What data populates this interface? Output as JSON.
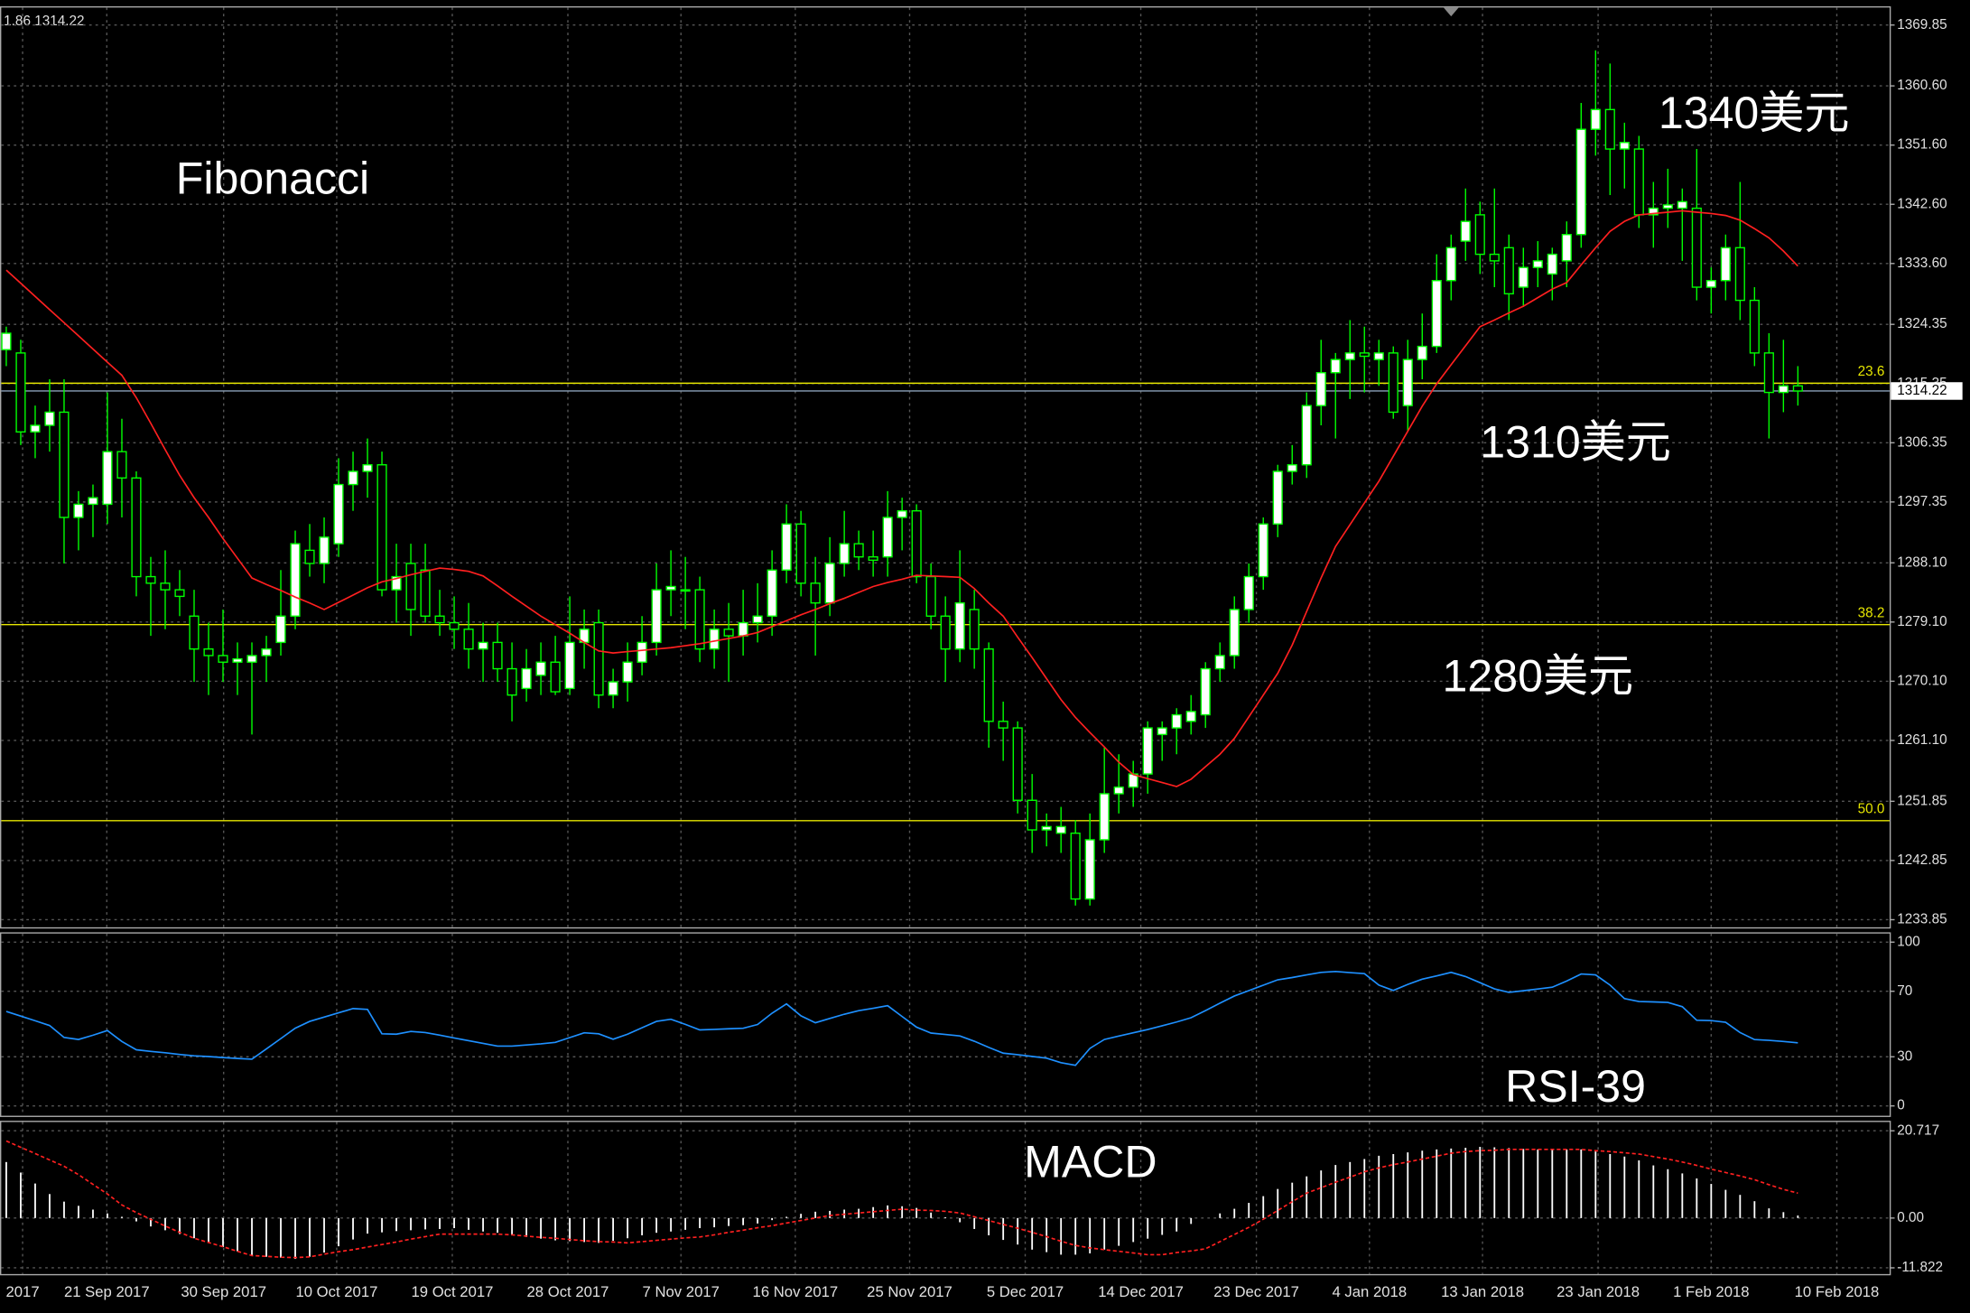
{
  "chart_data": {
    "type": "candlestick",
    "corner_label": "1.86 1314.22",
    "annotations": [
      "Fibonacci",
      "1340美元",
      "1310美元",
      "1280美元",
      "RSI-39",
      "MACD"
    ],
    "x_labels": [
      "2017",
      "21 Sep 2017",
      "30 Sep 2017",
      "10 Oct 2017",
      "19 Oct 2017",
      "28 Oct 2017",
      "7 Nov 2017",
      "16 Nov 2017",
      "25 Nov 2017",
      "5 Dec 2017",
      "14 Dec 2017",
      "23 Dec 2017",
      "4 Jan 2018",
      "13 Jan 2018",
      "23 Jan 2018",
      "1 Feb 2018",
      "10 Feb 2018"
    ],
    "candle_colors": {
      "up": "#ffffff",
      "down": "#000000",
      "wick": "#00ff00"
    },
    "grid": true,
    "ylim": [
      1232.7,
      1372.7
    ],
    "yticks": [
      1369.85,
      {
        "value": 1360.6,
        "label": "1360.60"
      },
      {
        "value": 1351.6,
        "label": "1351.60"
      },
      {
        "value": 1342.6,
        "label": "1342.60"
      },
      {
        "value": 1333.6,
        "label": "1333.60"
      },
      1324.35,
      1315.35,
      1306.35,
      1297.35,
      {
        "value": 1288.1,
        "label": "1288.10"
      },
      {
        "value": 1279.1,
        "label": "1279.10"
      },
      {
        "value": 1270.1,
        "label": "1270.10"
      },
      {
        "value": 1261.1,
        "label": "1261.10"
      },
      1251.85,
      1242.85,
      1233.85
    ],
    "current_price": 1314.22,
    "fib_levels": [
      {
        "label": "23.6",
        "price": 1315.4,
        "color": "#e6e600"
      },
      {
        "label": "38.2",
        "price": 1278.7,
        "color": "#e6e600"
      },
      {
        "label": "50.0",
        "price": 1248.9,
        "color": "#e6e600"
      }
    ],
    "candles": [
      [
        1320.5,
        1324,
        1318,
        1323
      ],
      [
        1320,
        1322,
        1306,
        1308
      ],
      [
        1308,
        1312,
        1304,
        1309
      ],
      [
        1309,
        1316,
        1305,
        1311
      ],
      [
        1311,
        1316,
        1288,
        1295
      ],
      [
        1295,
        1299,
        1290,
        1297
      ],
      [
        1297,
        1300,
        1292,
        1298
      ],
      [
        1297,
        1314,
        1294,
        1305
      ],
      [
        1305,
        1310,
        1295,
        1301
      ],
      [
        1301,
        1302,
        1283,
        1286
      ],
      [
        1286,
        1289,
        1277,
        1285
      ],
      [
        1285,
        1290,
        1278,
        1284
      ],
      [
        1284,
        1287,
        1280,
        1283
      ],
      [
        1280,
        1284,
        1270,
        1275
      ],
      [
        1275,
        1279,
        1268,
        1274
      ],
      [
        1274,
        1281,
        1270,
        1273
      ],
      [
        1273,
        1276,
        1268,
        1273.5
      ],
      [
        1273,
        1276,
        1262,
        1274
      ],
      [
        1274,
        1277,
        1270,
        1275
      ],
      [
        1276,
        1287,
        1274,
        1280
      ],
      [
        1280,
        1293,
        1278,
        1291
      ],
      [
        1290,
        1294,
        1286,
        1288
      ],
      [
        1288,
        1295,
        1285,
        1292
      ],
      [
        1291,
        1304,
        1289,
        1300
      ],
      [
        1300,
        1305,
        1296,
        1302
      ],
      [
        1302,
        1307,
        1298,
        1303
      ],
      [
        1303,
        1305,
        1283,
        1284
      ],
      [
        1284,
        1291,
        1279,
        1286
      ],
      [
        1288,
        1291,
        1277,
        1281
      ],
      [
        1287,
        1291,
        1279,
        1280
      ],
      [
        1280,
        1284,
        1277,
        1279
      ],
      [
        1279,
        1283,
        1275,
        1278
      ],
      [
        1278,
        1282,
        1272,
        1275
      ],
      [
        1275,
        1279,
        1270,
        1276
      ],
      [
        1276,
        1279,
        1270,
        1272
      ],
      [
        1272,
        1276,
        1264,
        1268
      ],
      [
        1269,
        1275,
        1267,
        1272
      ],
      [
        1271,
        1276,
        1268,
        1273
      ],
      [
        1273,
        1277,
        1268,
        1268.5
      ],
      [
        1269,
        1283,
        1268,
        1276
      ],
      [
        1276,
        1281,
        1272,
        1278
      ],
      [
        1279,
        1281,
        1266,
        1268
      ],
      [
        1268,
        1272,
        1266,
        1270
      ],
      [
        1270,
        1276,
        1267,
        1273
      ],
      [
        1273,
        1280,
        1271,
        1276
      ],
      [
        1276,
        1288,
        1274,
        1284
      ],
      [
        1284,
        1290,
        1280,
        1284.5
      ],
      [
        1284,
        1289,
        1278,
        1284
      ],
      [
        1284,
        1286,
        1273,
        1275
      ],
      [
        1275,
        1281,
        1272,
        1278
      ],
      [
        1278,
        1282,
        1270,
        1277
      ],
      [
        1277,
        1284,
        1274,
        1279
      ],
      [
        1279,
        1285,
        1276,
        1280
      ],
      [
        1280,
        1290,
        1277,
        1287
      ],
      [
        1287,
        1297,
        1285,
        1294
      ],
      [
        1294,
        1296,
        1283,
        1285
      ],
      [
        1285,
        1289,
        1274,
        1282
      ],
      [
        1282,
        1292,
        1280,
        1288
      ],
      [
        1288,
        1296,
        1286,
        1291
      ],
      [
        1291,
        1293,
        1287,
        1289
      ],
      [
        1289,
        1293,
        1286,
        1288.5
      ],
      [
        1289,
        1299,
        1286,
        1295
      ],
      [
        1295,
        1298,
        1290,
        1296
      ],
      [
        1296,
        1297,
        1285,
        1286
      ],
      [
        1286,
        1288,
        1278,
        1280
      ],
      [
        1280,
        1283,
        1270,
        1275
      ],
      [
        1275,
        1290,
        1273,
        1282
      ],
      [
        1281,
        1284,
        1272,
        1275
      ],
      [
        1275,
        1276,
        1260,
        1264
      ],
      [
        1264,
        1267,
        1258,
        1263
      ],
      [
        1263,
        1264,
        1250,
        1252
      ],
      [
        1252,
        1256,
        1244,
        1247.5
      ],
      [
        1247.5,
        1250,
        1245,
        1248
      ],
      [
        1247,
        1251,
        1244,
        1248
      ],
      [
        1247,
        1249,
        1236,
        1237
      ],
      [
        1237,
        1250,
        1236,
        1246
      ],
      [
        1246,
        1260,
        1244,
        1253
      ],
      [
        1253,
        1259,
        1250,
        1254
      ],
      [
        1254,
        1258,
        1251,
        1256
      ],
      [
        1256,
        1264,
        1253,
        1263
      ],
      [
        1262,
        1264,
        1258,
        1263
      ],
      [
        1263,
        1266,
        1259,
        1265
      ],
      [
        1264,
        1268,
        1262,
        1265.5
      ],
      [
        1265,
        1273,
        1263,
        1272
      ],
      [
        1272,
        1276,
        1270,
        1274
      ],
      [
        1274,
        1283,
        1272,
        1281
      ],
      [
        1281,
        1288,
        1279,
        1286
      ],
      [
        1286,
        1295,
        1284,
        1294
      ],
      [
        1294,
        1303,
        1292,
        1302
      ],
      [
        1302,
        1306,
        1300,
        1303
      ],
      [
        1303,
        1314,
        1301,
        1312
      ],
      [
        1312,
        1322,
        1309,
        1317
      ],
      [
        1317,
        1320,
        1307,
        1319
      ],
      [
        1319,
        1325,
        1313,
        1320
      ],
      [
        1320,
        1324,
        1314,
        1319.5
      ],
      [
        1319,
        1322,
        1315,
        1320
      ],
      [
        1320,
        1321,
        1310,
        1311
      ],
      [
        1312,
        1322,
        1308,
        1319
      ],
      [
        1319,
        1326,
        1316,
        1321
      ],
      [
        1321,
        1335,
        1320,
        1331
      ],
      [
        1331,
        1338,
        1328,
        1336
      ],
      [
        1337,
        1345,
        1334,
        1340
      ],
      [
        1341,
        1343,
        1332,
        1335
      ],
      [
        1335,
        1345,
        1330,
        1334
      ],
      [
        1336,
        1338,
        1325,
        1329
      ],
      [
        1330,
        1336,
        1327,
        1333
      ],
      [
        1333,
        1337,
        1330,
        1334
      ],
      [
        1332,
        1336,
        1328,
        1335
      ],
      [
        1334,
        1340,
        1330,
        1338
      ],
      [
        1338,
        1358,
        1336,
        1354
      ],
      [
        1354,
        1366,
        1350,
        1357
      ],
      [
        1357,
        1364,
        1344,
        1351
      ],
      [
        1351,
        1355,
        1345,
        1352
      ],
      [
        1351,
        1353,
        1339,
        1341
      ],
      [
        1341,
        1346,
        1336,
        1342
      ],
      [
        1342,
        1348,
        1339,
        1342.5
      ],
      [
        1342,
        1345,
        1334,
        1343
      ],
      [
        1342,
        1351,
        1328,
        1330
      ],
      [
        1330,
        1333,
        1326,
        1331
      ],
      [
        1331,
        1338,
        1328,
        1336
      ],
      [
        1336,
        1346,
        1325,
        1328
      ],
      [
        1328,
        1330,
        1318,
        1320
      ],
      [
        1320,
        1323,
        1307,
        1314
      ],
      [
        1314,
        1322,
        1311,
        1315
      ],
      [
        1315,
        1318,
        1312,
        1314.22
      ]
    ],
    "ma": {
      "color": "#ff2020",
      "values": [
        1332.6,
        1330.6,
        1328.6,
        1326.6,
        1324.6,
        1322.6,
        1320.6,
        1318.6,
        1316.6,
        1313.2,
        1309.3,
        1305.3,
        1301.4,
        1298.0,
        1295.0,
        1291.8,
        1288.8,
        1285.8,
        1284.8,
        1283.9,
        1282.9,
        1282.0,
        1281.0,
        1282.1,
        1283.2,
        1284.3,
        1285.2,
        1285.7,
        1286.3,
        1286.8,
        1287.3,
        1287.1,
        1286.8,
        1286.1,
        1284.6,
        1283.0,
        1281.5,
        1280.0,
        1278.7,
        1277.4,
        1276.0,
        1274.7,
        1274.4,
        1274.6,
        1274.8,
        1275.0,
        1275.2,
        1275.5,
        1275.8,
        1276.2,
        1276.6,
        1277.0,
        1277.5,
        1278.4,
        1279.3,
        1280.2,
        1281.0,
        1281.9,
        1282.7,
        1283.6,
        1284.5,
        1285.1,
        1285.6,
        1286.2,
        1286.1,
        1286.0,
        1285.9,
        1284.2,
        1282.0,
        1280.0,
        1276.8,
        1273.7,
        1270.5,
        1267.3,
        1264.6,
        1262.3,
        1260.1,
        1257.8,
        1255.9,
        1255.3,
        1254.7,
        1254.1,
        1255.2,
        1257.1,
        1259.0,
        1261.4,
        1264.7,
        1268.0,
        1271.3,
        1275.6,
        1280.7,
        1285.8,
        1290.6,
        1293.9,
        1297.2,
        1300.5,
        1304.3,
        1308.1,
        1311.9,
        1315.3,
        1318.2,
        1321.1,
        1324.0,
        1325.0,
        1326.1,
        1327.1,
        1328.4,
        1329.7,
        1330.7,
        1333.4,
        1336.0,
        1338.5,
        1340.0,
        1341.0,
        1341.2,
        1341.4,
        1341.6,
        1341.4,
        1341.2,
        1340.9,
        1340.2,
        1338.9,
        1337.5,
        1335.5,
        1333.2
      ]
    },
    "rsi": {
      "color": "#1e90ff",
      "ylim": [
        -6,
        106
      ],
      "yticks": [
        100,
        70,
        30,
        0
      ],
      "values": [
        57.7,
        54.8,
        52.0,
        49.1,
        41.8,
        40.6,
        43.2,
        46.0,
        39.3,
        34.3,
        33.3,
        32.4,
        31.4,
        30.6,
        30.1,
        29.5,
        29.0,
        28.5,
        34.8,
        41.1,
        47.5,
        51.6,
        54.2,
        56.8,
        59.4,
        58.9,
        44.0,
        43.8,
        45.5,
        44.8,
        43.2,
        41.5,
        39.8,
        38.2,
        36.5,
        36.5,
        37.2,
        37.9,
        38.8,
        41.7,
        44.6,
        44.0,
        40.7,
        43.8,
        47.7,
        51.6,
        52.9,
        49.8,
        46.4,
        46.7,
        47.1,
        47.4,
        49.7,
        56.6,
        62.3,
        55.0,
        50.8,
        53.4,
        56.0,
        58.1,
        59.6,
        61.2,
        54.6,
        48.1,
        44.5,
        43.6,
        42.7,
        39.5,
        35.7,
        32.2,
        31.3,
        30.2,
        29.1,
        26.4,
        24.8,
        35.1,
        40.6,
        42.6,
        44.6,
        46.6,
        48.9,
        51.2,
        53.8,
        58.2,
        62.7,
        67.1,
        70.4,
        73.7,
        77.0,
        78.4,
        80.0,
        81.5,
        82.1,
        81.4,
        80.8,
        73.8,
        70.5,
        74.2,
        77.4,
        79.4,
        81.5,
        79.0,
        75.2,
        71.5,
        69.3,
        70.3,
        71.4,
        72.5,
        76.2,
        80.5,
        80.0,
        73.8,
        65.5,
        63.7,
        63.5,
        63.2,
        60.6,
        52.3,
        52.1,
        51.1,
        44.8,
        40.5,
        40.0,
        39.3,
        38.5
      ]
    },
    "macd": {
      "hist_color": "#ffffff",
      "signal_color": "#ff2020",
      "ylim": [
        -13.3,
        23.1
      ],
      "yticks": [
        20.717,
        {
          "value": 0,
          "label": "0.00"
        },
        -11.822
      ],
      "histogram": [
        13.3,
        10.8,
        8.2,
        5.7,
        3.9,
        2.9,
        2.0,
        1.1,
        0.3,
        -0.8,
        -2.0,
        -2.9,
        -3.8,
        -4.8,
        -5.8,
        -6.9,
        -7.9,
        -8.9,
        -9.2,
        -9.4,
        -9.7,
        -9.2,
        -8.2,
        -6.7,
        -5.1,
        -3.7,
        -3.4,
        -3.1,
        -2.9,
        -2.7,
        -2.6,
        -2.4,
        -2.8,
        -3.2,
        -3.5,
        -4.0,
        -4.5,
        -4.9,
        -5.3,
        -5.5,
        -5.7,
        -5.9,
        -5.4,
        -4.8,
        -4.1,
        -3.5,
        -3.2,
        -2.8,
        -2.4,
        -2.2,
        -1.9,
        -1.7,
        -1.3,
        -0.5,
        0.3,
        1.0,
        1.5,
        1.7,
        2.0,
        2.2,
        2.6,
        3.0,
        2.8,
        2.4,
        1.3,
        0.2,
        -1.0,
        -2.6,
        -4.1,
        -5.2,
        -6.3,
        -7.5,
        -8.1,
        -8.7,
        -8.7,
        -8.4,
        -7.5,
        -6.6,
        -5.7,
        -4.9,
        -4.0,
        -3.2,
        -1.4,
        0.0,
        1.1,
        2.2,
        3.6,
        5.2,
        6.9,
        8.4,
        9.9,
        11.3,
        12.6,
        13.3,
        14.0,
        14.8,
        15.2,
        15.6,
        16.0,
        16.3,
        16.5,
        16.7,
        16.9,
        16.8,
        16.6,
        16.4,
        16.3,
        16.3,
        16.3,
        16.3,
        15.8,
        15.2,
        14.6,
        13.7,
        12.5,
        11.6,
        10.6,
        9.4,
        8.1,
        6.7,
        5.5,
        4.0,
        2.3,
        1.4,
        0.6
      ],
      "signal": [
        18.3,
        16.8,
        15.3,
        13.8,
        12.3,
        10.3,
        8.0,
        5.7,
        3.1,
        1.3,
        -0.3,
        -1.9,
        -3.4,
        -4.8,
        -5.8,
        -6.8,
        -7.9,
        -8.9,
        -9.1,
        -9.3,
        -9.4,
        -9.2,
        -8.6,
        -8.0,
        -7.5,
        -6.9,
        -6.3,
        -5.7,
        -5.0,
        -4.4,
        -3.8,
        -3.8,
        -3.8,
        -3.8,
        -3.8,
        -4.0,
        -4.3,
        -4.6,
        -4.8,
        -5.1,
        -5.4,
        -5.6,
        -5.7,
        -5.9,
        -5.6,
        -5.3,
        -5.0,
        -4.7,
        -4.5,
        -4.0,
        -3.4,
        -2.9,
        -2.3,
        -1.8,
        -1.2,
        -0.6,
        0.0,
        0.6,
        0.9,
        1.2,
        1.5,
        1.8,
        2.1,
        1.9,
        1.8,
        1.6,
        1.2,
        0.3,
        -0.6,
        -1.5,
        -2.4,
        -3.4,
        -4.4,
        -5.5,
        -6.5,
        -7.1,
        -7.5,
        -7.9,
        -8.3,
        -8.7,
        -8.7,
        -8.2,
        -7.8,
        -7.3,
        -5.6,
        -3.9,
        -2.2,
        -0.3,
        1.8,
        3.9,
        5.9,
        7.2,
        8.5,
        9.7,
        11.0,
        11.9,
        12.7,
        13.3,
        14.0,
        14.7,
        15.4,
        15.8,
        16.0,
        16.1,
        16.3,
        16.3,
        16.3,
        16.3,
        16.3,
        16.3,
        16.0,
        15.8,
        15.5,
        15.2,
        14.6,
        14.0,
        13.3,
        12.5,
        11.6,
        10.8,
        10.0,
        9.1,
        7.9,
        6.8,
        5.9
      ]
    }
  }
}
